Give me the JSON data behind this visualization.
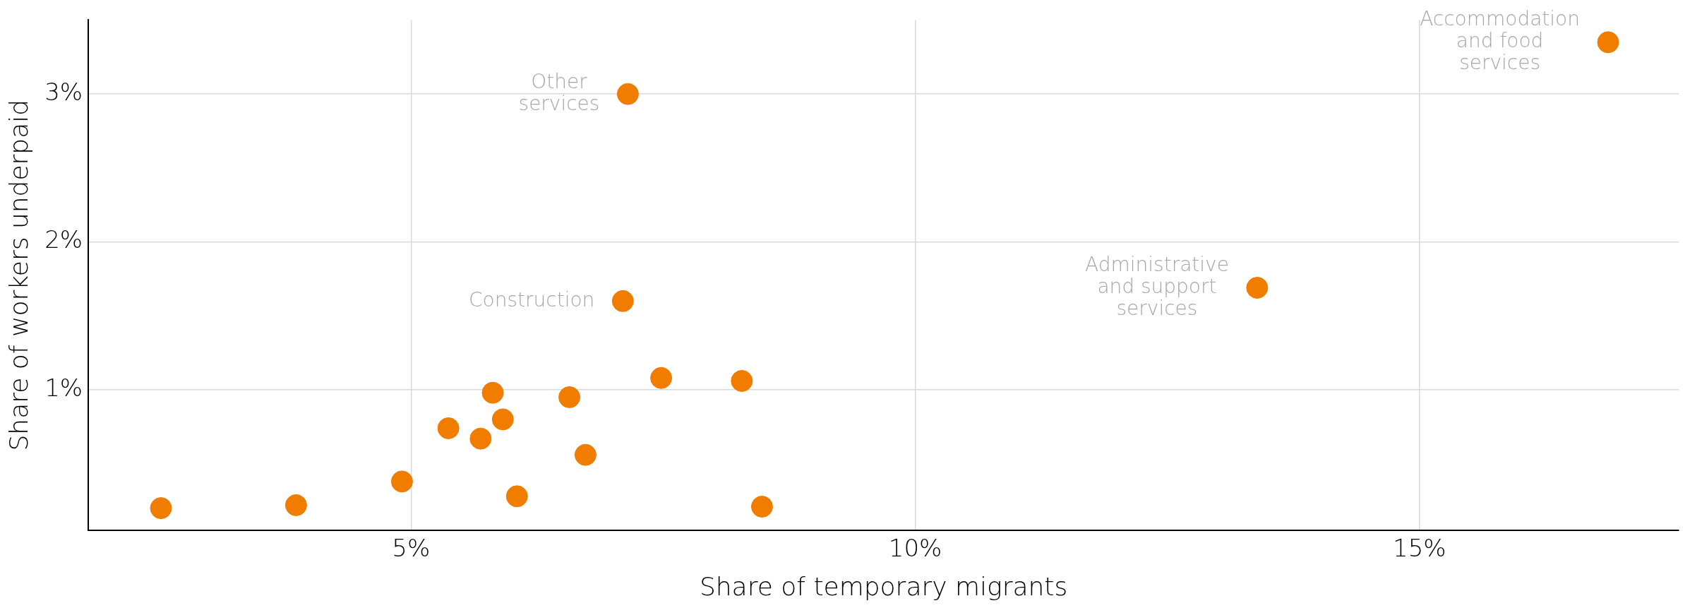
{
  "chart_data": {
    "type": "scatter",
    "xlabel": "Share of temporary migrants",
    "ylabel": "Share of workers underpaid",
    "x": [
      2.52,
      3.86,
      4.91,
      5.37,
      5.69,
      5.81,
      5.91,
      6.05,
      6.57,
      6.73,
      7.1,
      7.15,
      7.48,
      8.28,
      8.48,
      13.39,
      16.87
    ],
    "series": [
      {
        "color": "#f07c00",
        "values": [
          0.2,
          0.22,
          0.38,
          0.74,
          0.67,
          0.98,
          0.8,
          0.28,
          0.95,
          0.56,
          1.6,
          3.0,
          1.08,
          1.06,
          0.21,
          1.69,
          3.35
        ]
      }
    ],
    "xlim": [
      1.8,
      17.57
    ],
    "ylim": [
      0.05,
      3.5
    ],
    "xticks": [
      {
        "value": 5,
        "label": "5%"
      },
      {
        "value": 10,
        "label": "10%"
      },
      {
        "value": 15,
        "label": "15%"
      }
    ],
    "yticks": [
      {
        "value": 1,
        "label": "1%"
      },
      {
        "value": 2,
        "label": "2%"
      },
      {
        "value": 3,
        "label": "3%"
      }
    ],
    "grid": true,
    "marker": "circle",
    "annotations": [
      {
        "text": "Other\nservices",
        "x": 7.15,
        "y": 3.0
      },
      {
        "text": "Construction",
        "x": 7.1,
        "y": 1.6
      },
      {
        "text": "Administrative\nand support\nservices",
        "x": 13.39,
        "y": 1.69
      },
      {
        "text": "Accommodation\nand food\nservices",
        "x": 16.87,
        "y": 3.35
      }
    ]
  }
}
